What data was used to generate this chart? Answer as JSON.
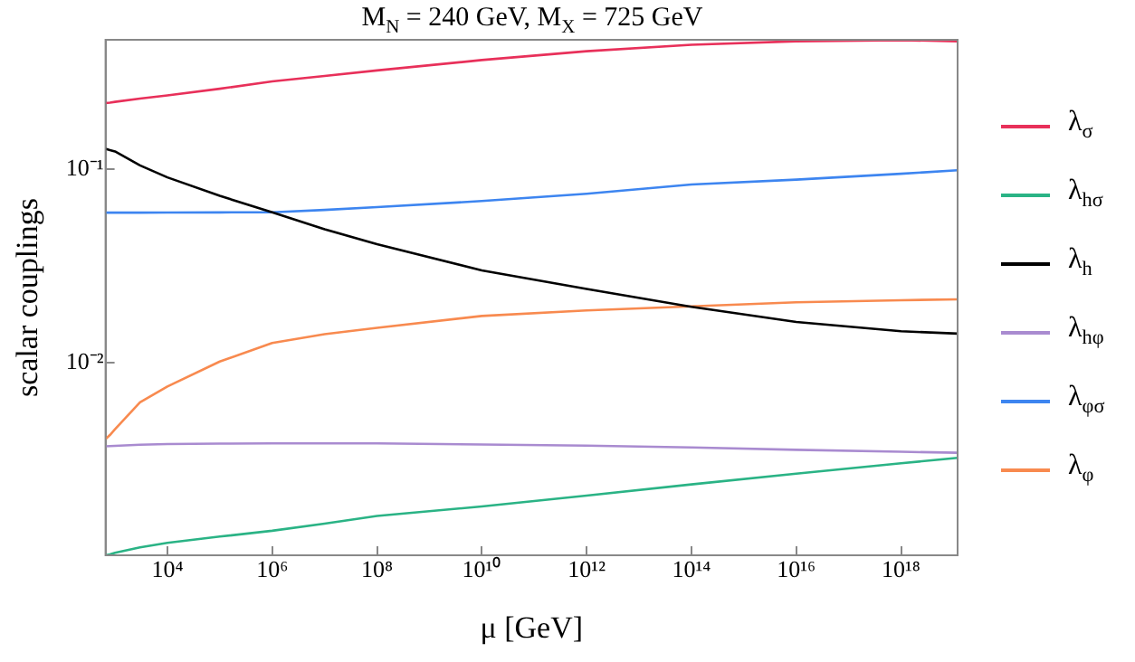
{
  "chart_data": {
    "type": "line",
    "title": "M$_{N}$ = 240 GeV,  M$_{X}$ = 725 GeV",
    "xlabel": "μ [GeV]",
    "ylabel": "scalar couplings",
    "log": "xy",
    "grid": false,
    "legend": "right",
    "marker": "none",
    "line_style": "solid",
    "x": [
      660,
      800,
      1000,
      3000,
      10000,
      100000,
      1000000,
      10000000,
      100000000,
      10000000000,
      1000000000000,
      100000000000000,
      1e+16,
      1e+18,
      1.2e+19
    ],
    "xlim": [
      660,
      1.2e+19
    ],
    "xticks": [
      {
        "value": 10000,
        "label": "10⁴"
      },
      {
        "value": 1000000,
        "label": "10⁶"
      },
      {
        "value": 100000000,
        "label": "10⁸"
      },
      {
        "value": 10000000000,
        "label": "10¹⁰"
      },
      {
        "value": 1000000000000,
        "label": "10¹²"
      },
      {
        "value": 100000000000000,
        "label": "10¹⁴"
      },
      {
        "value": 1e+16,
        "label": "10¹⁶"
      },
      {
        "value": 1e+18,
        "label": "10¹⁸"
      }
    ],
    "ylim": [
      0.001,
      0.47
    ],
    "yticks": [
      {
        "value": 0.01,
        "label": "10⁻²"
      },
      {
        "value": 0.1,
        "label": "10⁻¹"
      }
    ],
    "series": [
      {
        "name": "λ$_{σ}$",
        "color": "#e8305a",
        "values": [
          0.221,
          0.222,
          0.224,
          0.233,
          0.242,
          0.262,
          0.286,
          0.305,
          0.326,
          0.369,
          0.41,
          0.443,
          0.462,
          0.468,
          0.462
        ]
      },
      {
        "name": "λ$_{hσ}$",
        "color": "#2ab385",
        "values": [
          0.001,
          0.00101,
          0.00103,
          0.0011,
          0.00116,
          0.00125,
          0.00134,
          0.00146,
          0.0016,
          0.00179,
          0.00204,
          0.00233,
          0.00265,
          0.003,
          0.0032
        ]
      },
      {
        "name": "λ$_{h}$",
        "color": "#000000",
        "values": [
          0.128,
          0.126,
          0.124,
          0.105,
          0.091,
          0.073,
          0.06,
          0.049,
          0.041,
          0.03,
          0.024,
          0.0194,
          0.0162,
          0.0145,
          0.0141
        ]
      },
      {
        "name": "λ$_{hφ}$",
        "color": "#a98bd0",
        "values": [
          0.00367,
          0.00368,
          0.00369,
          0.00374,
          0.00377,
          0.00379,
          0.0038,
          0.0038,
          0.0038,
          0.00375,
          0.0037,
          0.00362,
          0.00352,
          0.00344,
          0.0034
        ]
      },
      {
        "name": "λ$_{φσ}$",
        "color": "#3d85f0",
        "values": [
          0.0597,
          0.0597,
          0.0597,
          0.0597,
          0.0598,
          0.0599,
          0.06,
          0.0617,
          0.0638,
          0.0686,
          0.0748,
          0.0835,
          0.0886,
          0.095,
          0.099
        ]
      },
      {
        "name": "λ$_{φ}$",
        "color": "#f88a4f",
        "values": [
          0.004,
          0.0042,
          0.0045,
          0.0062,
          0.0075,
          0.0101,
          0.0126,
          0.014,
          0.0151,
          0.0174,
          0.0186,
          0.0195,
          0.0205,
          0.021,
          0.0212
        ]
      }
    ]
  }
}
